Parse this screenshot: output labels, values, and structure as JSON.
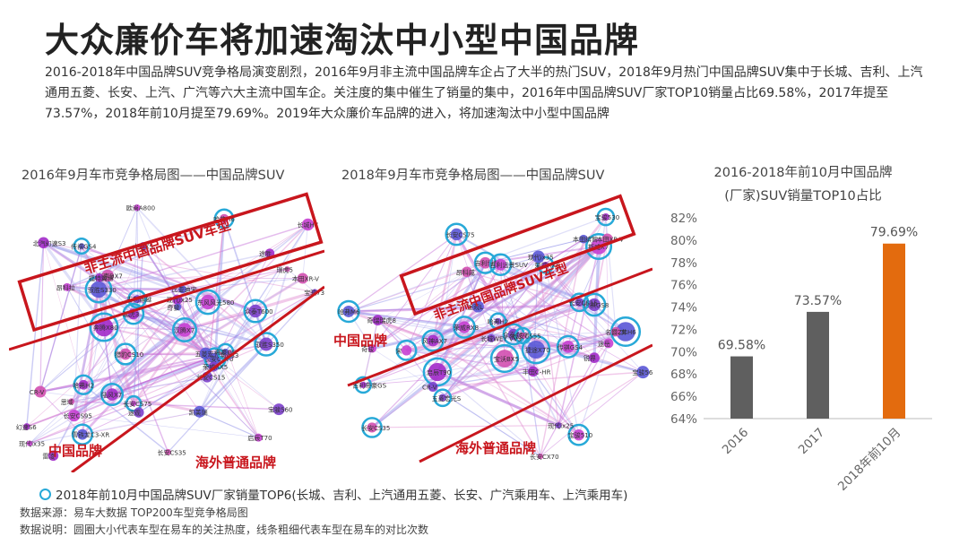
{
  "title": "大众廉价车将加速淘汰中小型中国品牌",
  "summary": "2016-2018年中国品牌SUV竞争格局演变剧烈，2016年9月非主流中国品牌车企占了大半的热门SUV，2018年9月热门中国品牌SUV集中于长城、吉利、上汽通用五菱、长安、上汽、广汽等六大主流中国车企。关注度的集中催生了销量的集中，2016年中国品牌SUV厂家TOP10销量占比69.58%，2017年提至73.57%，2018年前10月提至79.69%。2019年大众廉价车品牌的进入，将加速淘汰中小型中国品牌",
  "map2016": {
    "title": "2016年9月车市竞争格局图——中国品牌SUV",
    "label_minor": "非主流中国品牌SUV车型",
    "label_china": "中国品牌",
    "label_foreign": "海外普通品牌",
    "nodes": [
      "奔腾X80",
      "汉腾X7",
      "驭胜S350",
      "长安CX70",
      "猎豹CS10",
      "陆风X7",
      "东风风光580",
      "众泰T600",
      "驭胜S330",
      "东南DX7",
      "幻速S6",
      "长安CS95",
      "大迈X5",
      "比亚迪宋",
      "瑞风S3",
      "北汽幻速S3",
      "欧尚A800",
      "宝骏730",
      "五菱宏光",
      "瑞虎5",
      "瑞虎3",
      "长安CS75",
      "吉利博越",
      "传祺GS4",
      "哈弗H6",
      "哈弗H2",
      "启辰T70",
      "宝骏560",
      "帝豪GS",
      "长安CS35",
      "福特翼博",
      "昂科拉",
      "长安CS15",
      "雪铁龙C3-XR",
      "本田XR-V",
      "现代ix25",
      "现代ix35",
      "途观",
      "奇骏",
      "CR-V",
      "途胜",
      "长城H7",
      "荣威RX5",
      "凯美瑞",
      "思域",
      "雷凌"
    ]
  },
  "map2018": {
    "title": "2018年9月车市竞争格局图——中国品牌SUV",
    "label_minor": "非主流中国品牌SUV车型",
    "label_china": "中国品牌",
    "label_foreign": "海外普通品牌",
    "nodes": [
      "风神AX7",
      "荣威RX8",
      "众泰T600",
      "捷途X70",
      "宝沃BX5",
      "启辰T90",
      "斯威X7",
      "传祺GS8",
      "哈弗H6",
      "吉利博越",
      "荣威RX5",
      "宝骏510",
      "五菱宏光S",
      "长安CS75",
      "长安CS55",
      "吉利帝豪GS",
      "传祺GS4",
      "哈弗H2",
      "哈弗M6",
      "长安CS35",
      "宝骏530",
      "吉利远景SUV",
      "长安CS15",
      "宝骏560",
      "名爵ZS",
      "奇瑞瑞虎8",
      "宋",
      "长城WEY VV5",
      "途观L",
      "本田XR-V",
      "丰田C-HR",
      "奇骏",
      "CR-V",
      "现代ix35",
      "昂科威",
      "锐界",
      "途岳",
      "现代ix25",
      "本田缤智",
      "长安CX70"
    ]
  },
  "legend": "2018年前10月中国品牌SUV厂家销量TOP6(长城、吉利、上汽通用五菱、长安、广汽乘用车、上汽乘用车)",
  "notes": [
    "数据来源：易车大数据 TOP200车型竞争格局图",
    "数据说明：圆圈大小代表车型在易车的关注热度，线条粗细代表车型在易车的对比次数"
  ],
  "chart_title_lines": [
    "2016-2018年前10月中国品牌",
    "(厂家)SUV销量TOP10占比"
  ],
  "colors": {
    "gray_bar": "#5f5f5f",
    "orange_bar": "#e36b0e",
    "frame_red": "#c8161d",
    "top6_ring": "#27a9d8"
  },
  "chart_data": {
    "type": "bar",
    "title": "2016-2018年前10月中国品牌(厂家)SUV销量TOP10占比",
    "categories": [
      "2016",
      "2017",
      "2018年前10月"
    ],
    "values": [
      69.58,
      73.57,
      79.69
    ],
    "value_labels": [
      "69.58%",
      "73.57%",
      "79.69%"
    ],
    "ylim": [
      64,
      82
    ],
    "yticks": [
      64,
      66,
      68,
      70,
      72,
      74,
      76,
      78,
      80,
      82
    ],
    "ytick_suffix": "%",
    "grid": false,
    "colors": [
      "#5f5f5f",
      "#5f5f5f",
      "#e36b0e"
    ]
  }
}
